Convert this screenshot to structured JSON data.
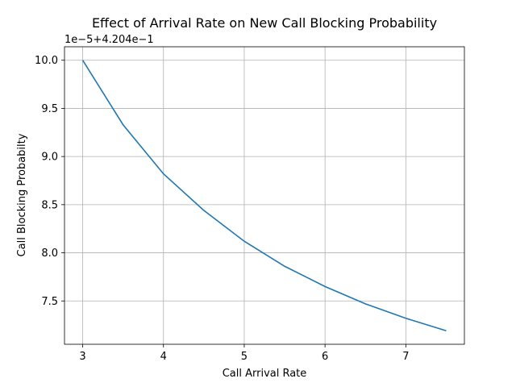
{
  "chart_data": {
    "type": "line",
    "title": "Effect of Arrival Rate on New Call Blocking Probability",
    "xlabel": "Call Arrival Rate",
    "ylabel": "Call Blocking Probabilty",
    "y_offset_label": "1e−5+4.204e−1",
    "x": [
      3.0,
      3.5,
      4.0,
      4.5,
      5.0,
      5.5,
      6.0,
      6.5,
      7.0,
      7.5
    ],
    "series": [
      {
        "values": [
          10.0,
          9.33,
          8.82,
          8.44,
          8.12,
          7.86,
          7.65,
          7.47,
          7.32,
          7.19
        ],
        "color": "#1f77b4"
      }
    ],
    "xlim": [
      2.775,
      7.725
    ],
    "ylim": [
      7.05,
      10.14
    ],
    "x_ticks": [
      "3",
      "4",
      "5",
      "6",
      "7"
    ],
    "y_ticks": [
      "7.5",
      "8.0",
      "8.5",
      "9.0",
      "9.5",
      "10.0"
    ],
    "grid": true
  }
}
